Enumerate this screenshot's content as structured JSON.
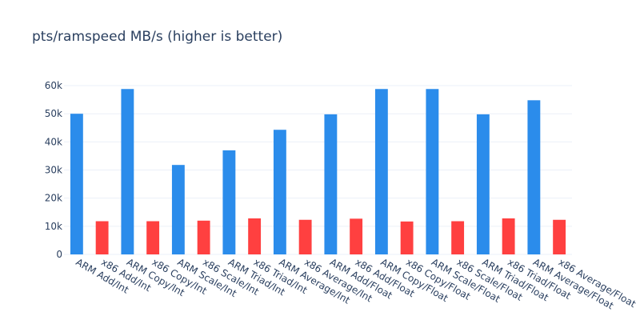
{
  "chart_data": {
    "type": "bar",
    "title": "pts/ramspeed MB/s (higher is better)",
    "xlabel": "",
    "ylabel": "",
    "ylim": [
      0,
      62000
    ],
    "yticks": [
      0,
      10000,
      20000,
      30000,
      40000,
      50000,
      60000
    ],
    "ytick_labels": [
      "0",
      "10k",
      "20k",
      "30k",
      "40k",
      "50k",
      "60k"
    ],
    "grid": true,
    "colors": {
      "ARM": "#2b8ceb",
      "x86": "#ff4040"
    },
    "categories": [
      "ARM Add/Int",
      "x86 Add/Int",
      "ARM Copy/Int",
      "x86 Copy/Int",
      "ARM Scale/Int",
      "x86 Scale/Int",
      "ARM Triad/Int",
      "x86 Triad/Int",
      "ARM Average/Int",
      "x86 Average/Int",
      "ARM Add/Float",
      "x86 Add/Float",
      "ARM Copy/Float",
      "x86 Copy/Float",
      "ARM Scale/Float",
      "x86 Scale/Float",
      "ARM Triad/Float",
      "x86 Triad/Float",
      "ARM Average/Float",
      "x86 Average/Float"
    ],
    "values": [
      50000,
      11800,
      58800,
      11800,
      31800,
      12000,
      37000,
      12800,
      44300,
      12300,
      49800,
      12700,
      58800,
      11700,
      58800,
      11800,
      49800,
      12800,
      54800,
      12300
    ]
  }
}
